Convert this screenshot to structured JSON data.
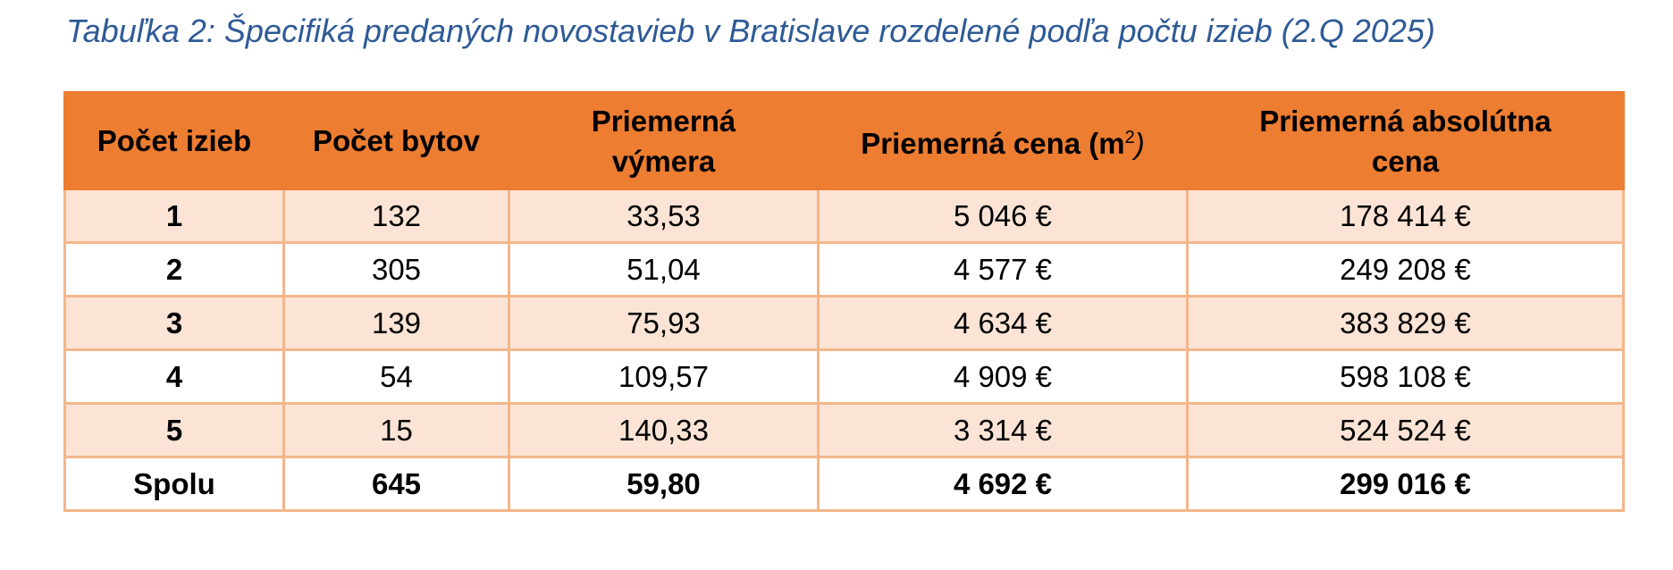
{
  "caption": "Tabuľka 2: Špecifiká predaných novostavieb v Bratislave rozdelené podľa počtu izieb (2.Q 2025)",
  "colors": {
    "header_bg": "#ed7d31",
    "row_shade": "#fbe4d5",
    "border": "#f3b68a",
    "caption": "#2e5a96"
  },
  "table": {
    "headers": {
      "rooms": "Počet izieb",
      "flats": "Počet bytov",
      "area_line1": "Priemerná",
      "area_line2": "výmera",
      "price_m2_prefix": "Priemerná cena (m",
      "price_m2_sup": "2",
      "price_m2_suffix": ")",
      "abs_price_line1": "Priemerná absolútna",
      "abs_price_line2": "cena"
    },
    "rows": [
      {
        "rooms": "1",
        "flats": "132",
        "area": "33,53",
        "price_m2": "5 046 €",
        "abs_price": "178 414 €"
      },
      {
        "rooms": "2",
        "flats": "305",
        "area": "51,04",
        "price_m2": "4 577 €",
        "abs_price": "249 208 €"
      },
      {
        "rooms": "3",
        "flats": "139",
        "area": "75,93",
        "price_m2": "4 634 €",
        "abs_price": "383 829 €"
      },
      {
        "rooms": "4",
        "flats": "54",
        "area": "109,57",
        "price_m2": "4 909 €",
        "abs_price": "598 108 €"
      },
      {
        "rooms": "5",
        "flats": "15",
        "area": "140,33",
        "price_m2": "3 314 €",
        "abs_price": "524 524 €"
      }
    ],
    "total": {
      "rooms": "Spolu",
      "flats": "645",
      "area": "59,80",
      "price_m2": "4 692 €",
      "abs_price": "299 016 €"
    }
  }
}
